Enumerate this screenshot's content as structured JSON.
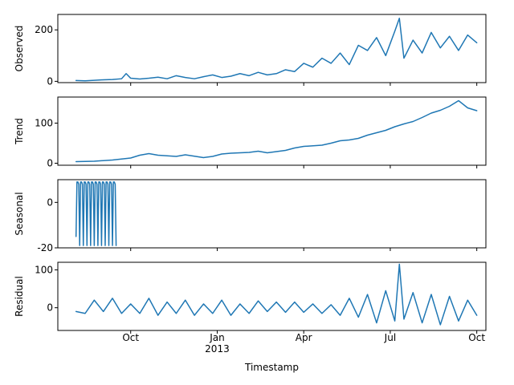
{
  "chart_data": [
    {
      "type": "line",
      "ylabel": "Observed",
      "ylim": [
        -5,
        260
      ],
      "yticks": [
        0,
        200
      ],
      "color": "#1f77b4",
      "series": [
        {
          "values": [
            [
              0,
              3
            ],
            [
              10,
              2
            ],
            [
              20,
              4
            ],
            [
              30,
              6
            ],
            [
              40,
              7
            ],
            [
              50,
              10
            ],
            [
              55,
              30
            ],
            [
              60,
              12
            ],
            [
              70,
              9
            ],
            [
              80,
              12
            ],
            [
              90,
              16
            ],
            [
              100,
              10
            ],
            [
              110,
              22
            ],
            [
              120,
              15
            ],
            [
              130,
              10
            ],
            [
              140,
              18
            ],
            [
              150,
              25
            ],
            [
              160,
              15
            ],
            [
              170,
              20
            ],
            [
              180,
              30
            ],
            [
              190,
              22
            ],
            [
              200,
              35
            ],
            [
              210,
              25
            ],
            [
              220,
              30
            ],
            [
              230,
              45
            ],
            [
              240,
              38
            ],
            [
              250,
              70
            ],
            [
              260,
              55
            ],
            [
              270,
              90
            ],
            [
              280,
              70
            ],
            [
              290,
              110
            ],
            [
              300,
              65
            ],
            [
              310,
              140
            ],
            [
              320,
              120
            ],
            [
              330,
              170
            ],
            [
              340,
              100
            ],
            [
              350,
              195
            ],
            [
              355,
              245
            ],
            [
              360,
              90
            ],
            [
              370,
              160
            ],
            [
              380,
              110
            ],
            [
              390,
              190
            ],
            [
              400,
              130
            ],
            [
              410,
              175
            ],
            [
              420,
              120
            ],
            [
              430,
              180
            ],
            [
              440,
              150
            ]
          ]
        }
      ]
    },
    {
      "type": "line",
      "ylabel": "Trend",
      "ylim": [
        -5,
        165
      ],
      "yticks": [
        0,
        100
      ],
      "color": "#1f77b4",
      "series": [
        {
          "values": [
            [
              0,
              4
            ],
            [
              20,
              5
            ],
            [
              40,
              8
            ],
            [
              60,
              13
            ],
            [
              70,
              20
            ],
            [
              80,
              24
            ],
            [
              90,
              20
            ],
            [
              110,
              17
            ],
            [
              120,
              21
            ],
            [
              140,
              14
            ],
            [
              150,
              17
            ],
            [
              160,
              23
            ],
            [
              170,
              25
            ],
            [
              190,
              27
            ],
            [
              200,
              30
            ],
            [
              210,
              26
            ],
            [
              220,
              29
            ],
            [
              230,
              32
            ],
            [
              240,
              38
            ],
            [
              250,
              42
            ],
            [
              270,
              45
            ],
            [
              280,
              50
            ],
            [
              290,
              56
            ],
            [
              300,
              58
            ],
            [
              310,
              62
            ],
            [
              320,
              70
            ],
            [
              330,
              76
            ],
            [
              340,
              82
            ],
            [
              350,
              91
            ],
            [
              360,
              98
            ],
            [
              370,
              104
            ],
            [
              380,
              114
            ],
            [
              390,
              125
            ],
            [
              400,
              132
            ],
            [
              410,
              142
            ],
            [
              420,
              156
            ],
            [
              430,
              138
            ],
            [
              440,
              131
            ]
          ]
        }
      ]
    },
    {
      "type": "line",
      "ylabel": "Seasonal",
      "ylim": [
        -20,
        10
      ],
      "yticks": [
        0,
        -20
      ],
      "color": "#1f77b4",
      "series": [
        {
          "values": [
            [
              0,
              -15
            ],
            [
              1,
              9
            ],
            [
              2,
              9
            ],
            [
              3,
              8
            ],
            [
              4,
              -19
            ],
            [
              5,
              9
            ],
            [
              6,
              9
            ],
            [
              7,
              8
            ],
            [
              8,
              -19
            ],
            [
              9,
              9
            ],
            [
              10,
              9
            ],
            [
              11,
              8
            ],
            [
              12,
              -19
            ],
            [
              13,
              9
            ],
            [
              14,
              9
            ],
            [
              15,
              8
            ],
            [
              16,
              -19
            ],
            [
              17,
              9
            ],
            [
              18,
              9
            ],
            [
              19,
              8
            ],
            [
              20,
              -19
            ],
            [
              21,
              9
            ],
            [
              22,
              9
            ],
            [
              23,
              8
            ],
            [
              24,
              -19
            ],
            [
              25,
              9
            ],
            [
              26,
              9
            ],
            [
              27,
              8
            ],
            [
              28,
              -19
            ],
            [
              29,
              9
            ],
            [
              30,
              9
            ],
            [
              31,
              8
            ],
            [
              32,
              -19
            ],
            [
              33,
              9
            ],
            [
              34,
              9
            ],
            [
              35,
              8
            ],
            [
              36,
              -19
            ],
            [
              37,
              9
            ],
            [
              38,
              9
            ],
            [
              39,
              8
            ],
            [
              40,
              -19
            ],
            [
              41,
              9
            ],
            [
              42,
              9
            ],
            [
              43,
              8
            ],
            [
              44,
              -19
            ]
          ]
        }
      ]
    },
    {
      "type": "line",
      "ylabel": "Residual",
      "ylim": [
        -60,
        120
      ],
      "yticks": [
        0,
        100
      ],
      "color": "#1f77b4",
      "series": [
        {
          "values": [
            [
              0,
              -10
            ],
            [
              10,
              -15
            ],
            [
              20,
              20
            ],
            [
              30,
              -10
            ],
            [
              40,
              25
            ],
            [
              50,
              -15
            ],
            [
              60,
              10
            ],
            [
              70,
              -15
            ],
            [
              80,
              25
            ],
            [
              90,
              -20
            ],
            [
              100,
              15
            ],
            [
              110,
              -15
            ],
            [
              120,
              20
            ],
            [
              130,
              -20
            ],
            [
              140,
              10
            ],
            [
              150,
              -15
            ],
            [
              160,
              20
            ],
            [
              170,
              -20
            ],
            [
              180,
              10
            ],
            [
              190,
              -15
            ],
            [
              200,
              18
            ],
            [
              210,
              -10
            ],
            [
              220,
              15
            ],
            [
              230,
              -12
            ],
            [
              240,
              15
            ],
            [
              250,
              -12
            ],
            [
              260,
              10
            ],
            [
              270,
              -15
            ],
            [
              280,
              8
            ],
            [
              290,
              -20
            ],
            [
              300,
              25
            ],
            [
              310,
              -25
            ],
            [
              320,
              35
            ],
            [
              330,
              -40
            ],
            [
              340,
              45
            ],
            [
              350,
              -35
            ],
            [
              355,
              115
            ],
            [
              360,
              -30
            ],
            [
              370,
              40
            ],
            [
              380,
              -40
            ],
            [
              390,
              35
            ],
            [
              400,
              -45
            ],
            [
              410,
              30
            ],
            [
              420,
              -35
            ],
            [
              430,
              20
            ],
            [
              440,
              -20
            ]
          ]
        }
      ]
    }
  ],
  "shared_x": {
    "label": "Timestamp",
    "ticks": [
      {
        "label": "Oct",
        "x": 60
      },
      {
        "label": "Jan\n2013",
        "x": 155
      },
      {
        "label": "Apr",
        "x": 250
      },
      {
        "label": "Jul",
        "x": 345
      },
      {
        "label": "Oct",
        "x": 440
      }
    ]
  }
}
